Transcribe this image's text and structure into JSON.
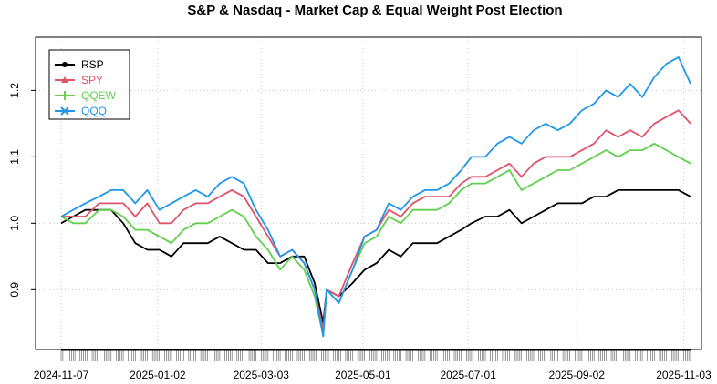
{
  "chart_data": {
    "type": "line",
    "title": "S&P & Nasdaq - Market Cap & Equal Weight Post Election",
    "xlabel": "",
    "ylabel": "",
    "x_tick_labels": [
      "2024-11-07",
      "2025-01-02",
      "2025-03-03",
      "2025-05-01",
      "2025-07-01",
      "2025-09-02",
      "2025-11-03"
    ],
    "y_tick_labels": [
      "0.9",
      "1.0",
      "1.1",
      "1.2"
    ],
    "ylim": [
      0.81,
      1.28
    ],
    "grid": true,
    "legend_position": "top-left",
    "x": [
      "2024-11-07",
      "2024-11-14",
      "2024-11-21",
      "2024-11-29",
      "2024-12-06",
      "2024-12-13",
      "2024-12-20",
      "2024-12-27",
      "2025-01-03",
      "2025-01-10",
      "2025-01-17",
      "2025-01-24",
      "2025-01-31",
      "2025-02-07",
      "2025-02-14",
      "2025-02-21",
      "2025-02-28",
      "2025-03-07",
      "2025-03-14",
      "2025-03-21",
      "2025-03-28",
      "2025-04-03",
      "2025-04-08",
      "2025-04-10",
      "2025-04-17",
      "2025-04-25",
      "2025-05-02",
      "2025-05-09",
      "2025-05-16",
      "2025-05-23",
      "2025-05-30",
      "2025-06-06",
      "2025-06-13",
      "2025-06-20",
      "2025-06-27",
      "2025-07-03",
      "2025-07-11",
      "2025-07-18",
      "2025-07-25",
      "2025-08-01",
      "2025-08-08",
      "2025-08-15",
      "2025-08-22",
      "2025-08-29",
      "2025-09-05",
      "2025-09-12",
      "2025-09-19",
      "2025-09-26",
      "2025-10-03",
      "2025-10-10",
      "2025-10-17",
      "2025-10-24",
      "2025-10-31",
      "2025-11-07"
    ],
    "series": [
      {
        "name": "RSP",
        "color": "#000000",
        "marker": "circle",
        "values": [
          1.0,
          1.01,
          1.02,
          1.02,
          1.02,
          1.0,
          0.97,
          0.96,
          0.96,
          0.95,
          0.97,
          0.97,
          0.97,
          0.98,
          0.97,
          0.96,
          0.96,
          0.94,
          0.94,
          0.95,
          0.95,
          0.91,
          0.85,
          0.9,
          0.89,
          0.91,
          0.93,
          0.94,
          0.96,
          0.95,
          0.97,
          0.97,
          0.97,
          0.98,
          0.99,
          1.0,
          1.01,
          1.01,
          1.02,
          1.0,
          1.01,
          1.02,
          1.03,
          1.03,
          1.03,
          1.04,
          1.04,
          1.05,
          1.05,
          1.05,
          1.05,
          1.05,
          1.05,
          1.04
        ]
      },
      {
        "name": "SPY",
        "color": "#df536b",
        "marker": "triangle",
        "values": [
          1.01,
          1.01,
          1.01,
          1.03,
          1.03,
          1.03,
          1.01,
          1.03,
          1.0,
          1.0,
          1.02,
          1.03,
          1.03,
          1.04,
          1.05,
          1.04,
          1.01,
          0.98,
          0.95,
          0.96,
          0.94,
          0.9,
          0.84,
          0.9,
          0.89,
          0.94,
          0.98,
          0.99,
          1.02,
          1.01,
          1.03,
          1.04,
          1.04,
          1.04,
          1.06,
          1.07,
          1.07,
          1.08,
          1.09,
          1.07,
          1.09,
          1.1,
          1.1,
          1.1,
          1.11,
          1.12,
          1.14,
          1.13,
          1.14,
          1.13,
          1.15,
          1.16,
          1.17,
          1.15
        ]
      },
      {
        "name": "QQEW",
        "color": "#61d04f",
        "marker": "plus",
        "values": [
          1.01,
          1.0,
          1.0,
          1.02,
          1.02,
          1.01,
          0.99,
          0.99,
          0.98,
          0.97,
          0.99,
          1.0,
          1.0,
          1.01,
          1.02,
          1.01,
          0.98,
          0.96,
          0.93,
          0.95,
          0.93,
          0.89,
          0.83,
          0.9,
          0.88,
          0.93,
          0.97,
          0.98,
          1.01,
          1.0,
          1.02,
          1.02,
          1.02,
          1.03,
          1.05,
          1.06,
          1.06,
          1.07,
          1.08,
          1.05,
          1.06,
          1.07,
          1.08,
          1.08,
          1.09,
          1.1,
          1.11,
          1.1,
          1.11,
          1.11,
          1.12,
          1.11,
          1.1,
          1.09
        ]
      },
      {
        "name": "QQQ",
        "color": "#2297e6",
        "marker": "x",
        "values": [
          1.01,
          1.02,
          1.03,
          1.04,
          1.05,
          1.05,
          1.03,
          1.05,
          1.02,
          1.03,
          1.04,
          1.05,
          1.04,
          1.06,
          1.07,
          1.06,
          1.02,
          0.99,
          0.95,
          0.96,
          0.94,
          0.9,
          0.83,
          0.9,
          0.88,
          0.93,
          0.98,
          0.99,
          1.03,
          1.02,
          1.04,
          1.05,
          1.05,
          1.06,
          1.08,
          1.1,
          1.1,
          1.12,
          1.13,
          1.12,
          1.14,
          1.15,
          1.14,
          1.15,
          1.17,
          1.18,
          1.2,
          1.19,
          1.21,
          1.19,
          1.22,
          1.24,
          1.25,
          1.21
        ]
      }
    ]
  }
}
